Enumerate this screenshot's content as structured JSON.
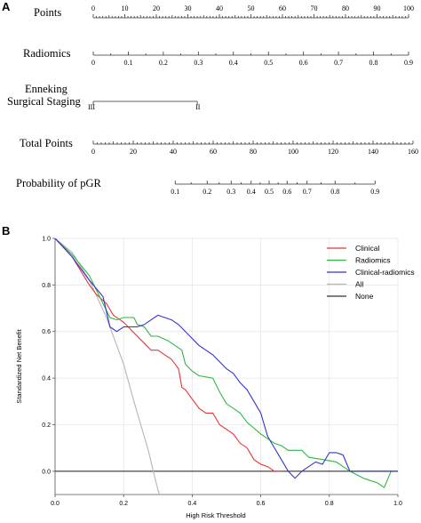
{
  "panel_a": {
    "label": "A",
    "rows": [
      {
        "label": "Points",
        "ticks": [
          "0",
          "10",
          "20",
          "30",
          "40",
          "50",
          "60",
          "70",
          "80",
          "90",
          "100"
        ]
      },
      {
        "label": "Radiomics",
        "ticks": [
          "0",
          "0.1",
          "0.2",
          "0.3",
          "0.4",
          "0.5",
          "0.6",
          "0.7",
          "0.8",
          "0.9"
        ]
      },
      {
        "label": "Enneking\nSurgical Staging",
        "ticks": [
          "III",
          "II"
        ]
      },
      {
        "label": "Total Points",
        "ticks": [
          "0",
          "20",
          "40",
          "60",
          "80",
          "100",
          "120",
          "140",
          "160"
        ]
      },
      {
        "label": "Probability of pGR",
        "ticks": [
          "0.1",
          "0.2",
          "0.3",
          "0.4",
          "0.5",
          "0.6",
          "0.7",
          "0.8",
          "0.9"
        ]
      }
    ]
  },
  "panel_b": {
    "label": "B"
  },
  "chart_data": [
    {
      "type": "nomogram",
      "rows": [
        {
          "name": "Points",
          "range": [
            0,
            100
          ],
          "labels": [
            0,
            10,
            20,
            30,
            40,
            50,
            60,
            70,
            80,
            90,
            100
          ]
        },
        {
          "name": "Radiomics",
          "range": [
            0,
            0.9
          ],
          "labels": [
            0,
            0.1,
            0.2,
            0.3,
            0.4,
            0.5,
            0.6,
            0.7,
            0.8,
            0.9
          ],
          "points_at_0": 0,
          "points_at_max": 100
        },
        {
          "name": "Enneking Surgical Staging",
          "levels": [
            "III",
            "II"
          ],
          "points": [
            0,
            33
          ]
        },
        {
          "name": "Total Points",
          "range": [
            0,
            160
          ],
          "labels": [
            0,
            20,
            40,
            60,
            80,
            100,
            120,
            140,
            160
          ]
        },
        {
          "name": "Probability of pGR",
          "labels": [
            0.1,
            0.2,
            0.3,
            0.4,
            0.5,
            0.6,
            0.7,
            0.8,
            0.9
          ],
          "total_points": [
            41,
            57,
            69,
            79,
            88,
            97,
            107,
            121,
            141
          ]
        }
      ]
    },
    {
      "type": "line",
      "xlabel": "High Risk Threshold",
      "ylabel": "Standardized Net Benefit",
      "xlim": [
        0,
        1.0
      ],
      "ylim": [
        -0.1,
        1.0
      ],
      "xticks": [
        "0.0",
        "0.2",
        "0.4",
        "0.6",
        "0.8",
        "1.0"
      ],
      "yticks": [
        "0.0",
        "0.2",
        "0.4",
        "0.6",
        "0.8",
        "1.0"
      ],
      "legend_position": "top-right",
      "series": [
        {
          "name": "Clinical",
          "color": "#e8343a",
          "x": [
            0,
            0.05,
            0.1,
            0.12,
            0.15,
            0.17,
            0.2,
            0.24,
            0.26,
            0.28,
            0.3,
            0.32,
            0.34,
            0.36,
            0.37,
            0.38,
            0.4,
            0.42,
            0.44,
            0.46,
            0.48,
            0.5,
            0.52,
            0.54,
            0.56,
            0.58,
            0.6,
            0.62,
            0.64,
            0.66
          ],
          "y": [
            1.0,
            0.92,
            0.8,
            0.76,
            0.72,
            0.67,
            0.64,
            0.58,
            0.55,
            0.52,
            0.52,
            0.5,
            0.48,
            0.44,
            0.36,
            0.35,
            0.31,
            0.27,
            0.25,
            0.25,
            0.2,
            0.18,
            0.16,
            0.12,
            0.1,
            0.05,
            0.03,
            0.02,
            0.0,
            0.0
          ]
        },
        {
          "name": "Radiomics",
          "color": "#2db843",
          "x": [
            0,
            0.05,
            0.1,
            0.14,
            0.16,
            0.18,
            0.2,
            0.23,
            0.24,
            0.26,
            0.28,
            0.3,
            0.33,
            0.35,
            0.37,
            0.38,
            0.4,
            0.42,
            0.46,
            0.48,
            0.5,
            0.52,
            0.54,
            0.56,
            0.6,
            0.64,
            0.66,
            0.68,
            0.72,
            0.74,
            0.78,
            0.82,
            0.86,
            0.9,
            0.94,
            0.96,
            0.98
          ],
          "y": [
            1.0,
            0.93,
            0.84,
            0.72,
            0.66,
            0.65,
            0.66,
            0.66,
            0.63,
            0.62,
            0.58,
            0.58,
            0.56,
            0.54,
            0.52,
            0.46,
            0.43,
            0.41,
            0.4,
            0.34,
            0.29,
            0.27,
            0.25,
            0.21,
            0.16,
            0.12,
            0.11,
            0.09,
            0.09,
            0.06,
            0.05,
            0.04,
            0.0,
            -0.03,
            -0.05,
            -0.07,
            0.0
          ]
        },
        {
          "name": "Clinical-radiomics",
          "color": "#3535c8",
          "x": [
            0,
            0.05,
            0.1,
            0.14,
            0.16,
            0.18,
            0.2,
            0.22,
            0.24,
            0.26,
            0.28,
            0.3,
            0.32,
            0.34,
            0.36,
            0.38,
            0.4,
            0.42,
            0.44,
            0.46,
            0.48,
            0.5,
            0.52,
            0.54,
            0.56,
            0.58,
            0.6,
            0.62,
            0.64,
            0.66,
            0.68,
            0.7,
            0.72,
            0.74,
            0.76,
            0.78,
            0.8,
            0.82,
            0.84,
            0.86,
            0.9,
            0.95,
            1.0
          ],
          "y": [
            1.0,
            0.92,
            0.82,
            0.75,
            0.62,
            0.6,
            0.62,
            0.62,
            0.62,
            0.63,
            0.65,
            0.67,
            0.66,
            0.65,
            0.63,
            0.6,
            0.57,
            0.54,
            0.52,
            0.5,
            0.47,
            0.44,
            0.42,
            0.38,
            0.35,
            0.3,
            0.25,
            0.15,
            0.1,
            0.05,
            0.0,
            -0.03,
            0.0,
            0.02,
            0.04,
            0.03,
            0.08,
            0.08,
            0.07,
            0.0,
            0.0,
            0.0,
            0.0
          ]
        },
        {
          "name": "All",
          "color": "#b5b5b5",
          "x": [
            0,
            0.05,
            0.1,
            0.15,
            0.2,
            0.23,
            0.25,
            0.27,
            0.28,
            0.29,
            0.3,
            0.305
          ],
          "y": [
            1.0,
            0.94,
            0.82,
            0.66,
            0.46,
            0.3,
            0.2,
            0.1,
            0.04,
            -0.02,
            -0.08,
            -0.1
          ]
        },
        {
          "name": "None",
          "color": "#333333",
          "x": [
            0,
            1.0
          ],
          "y": [
            0,
            0
          ]
        }
      ]
    }
  ]
}
